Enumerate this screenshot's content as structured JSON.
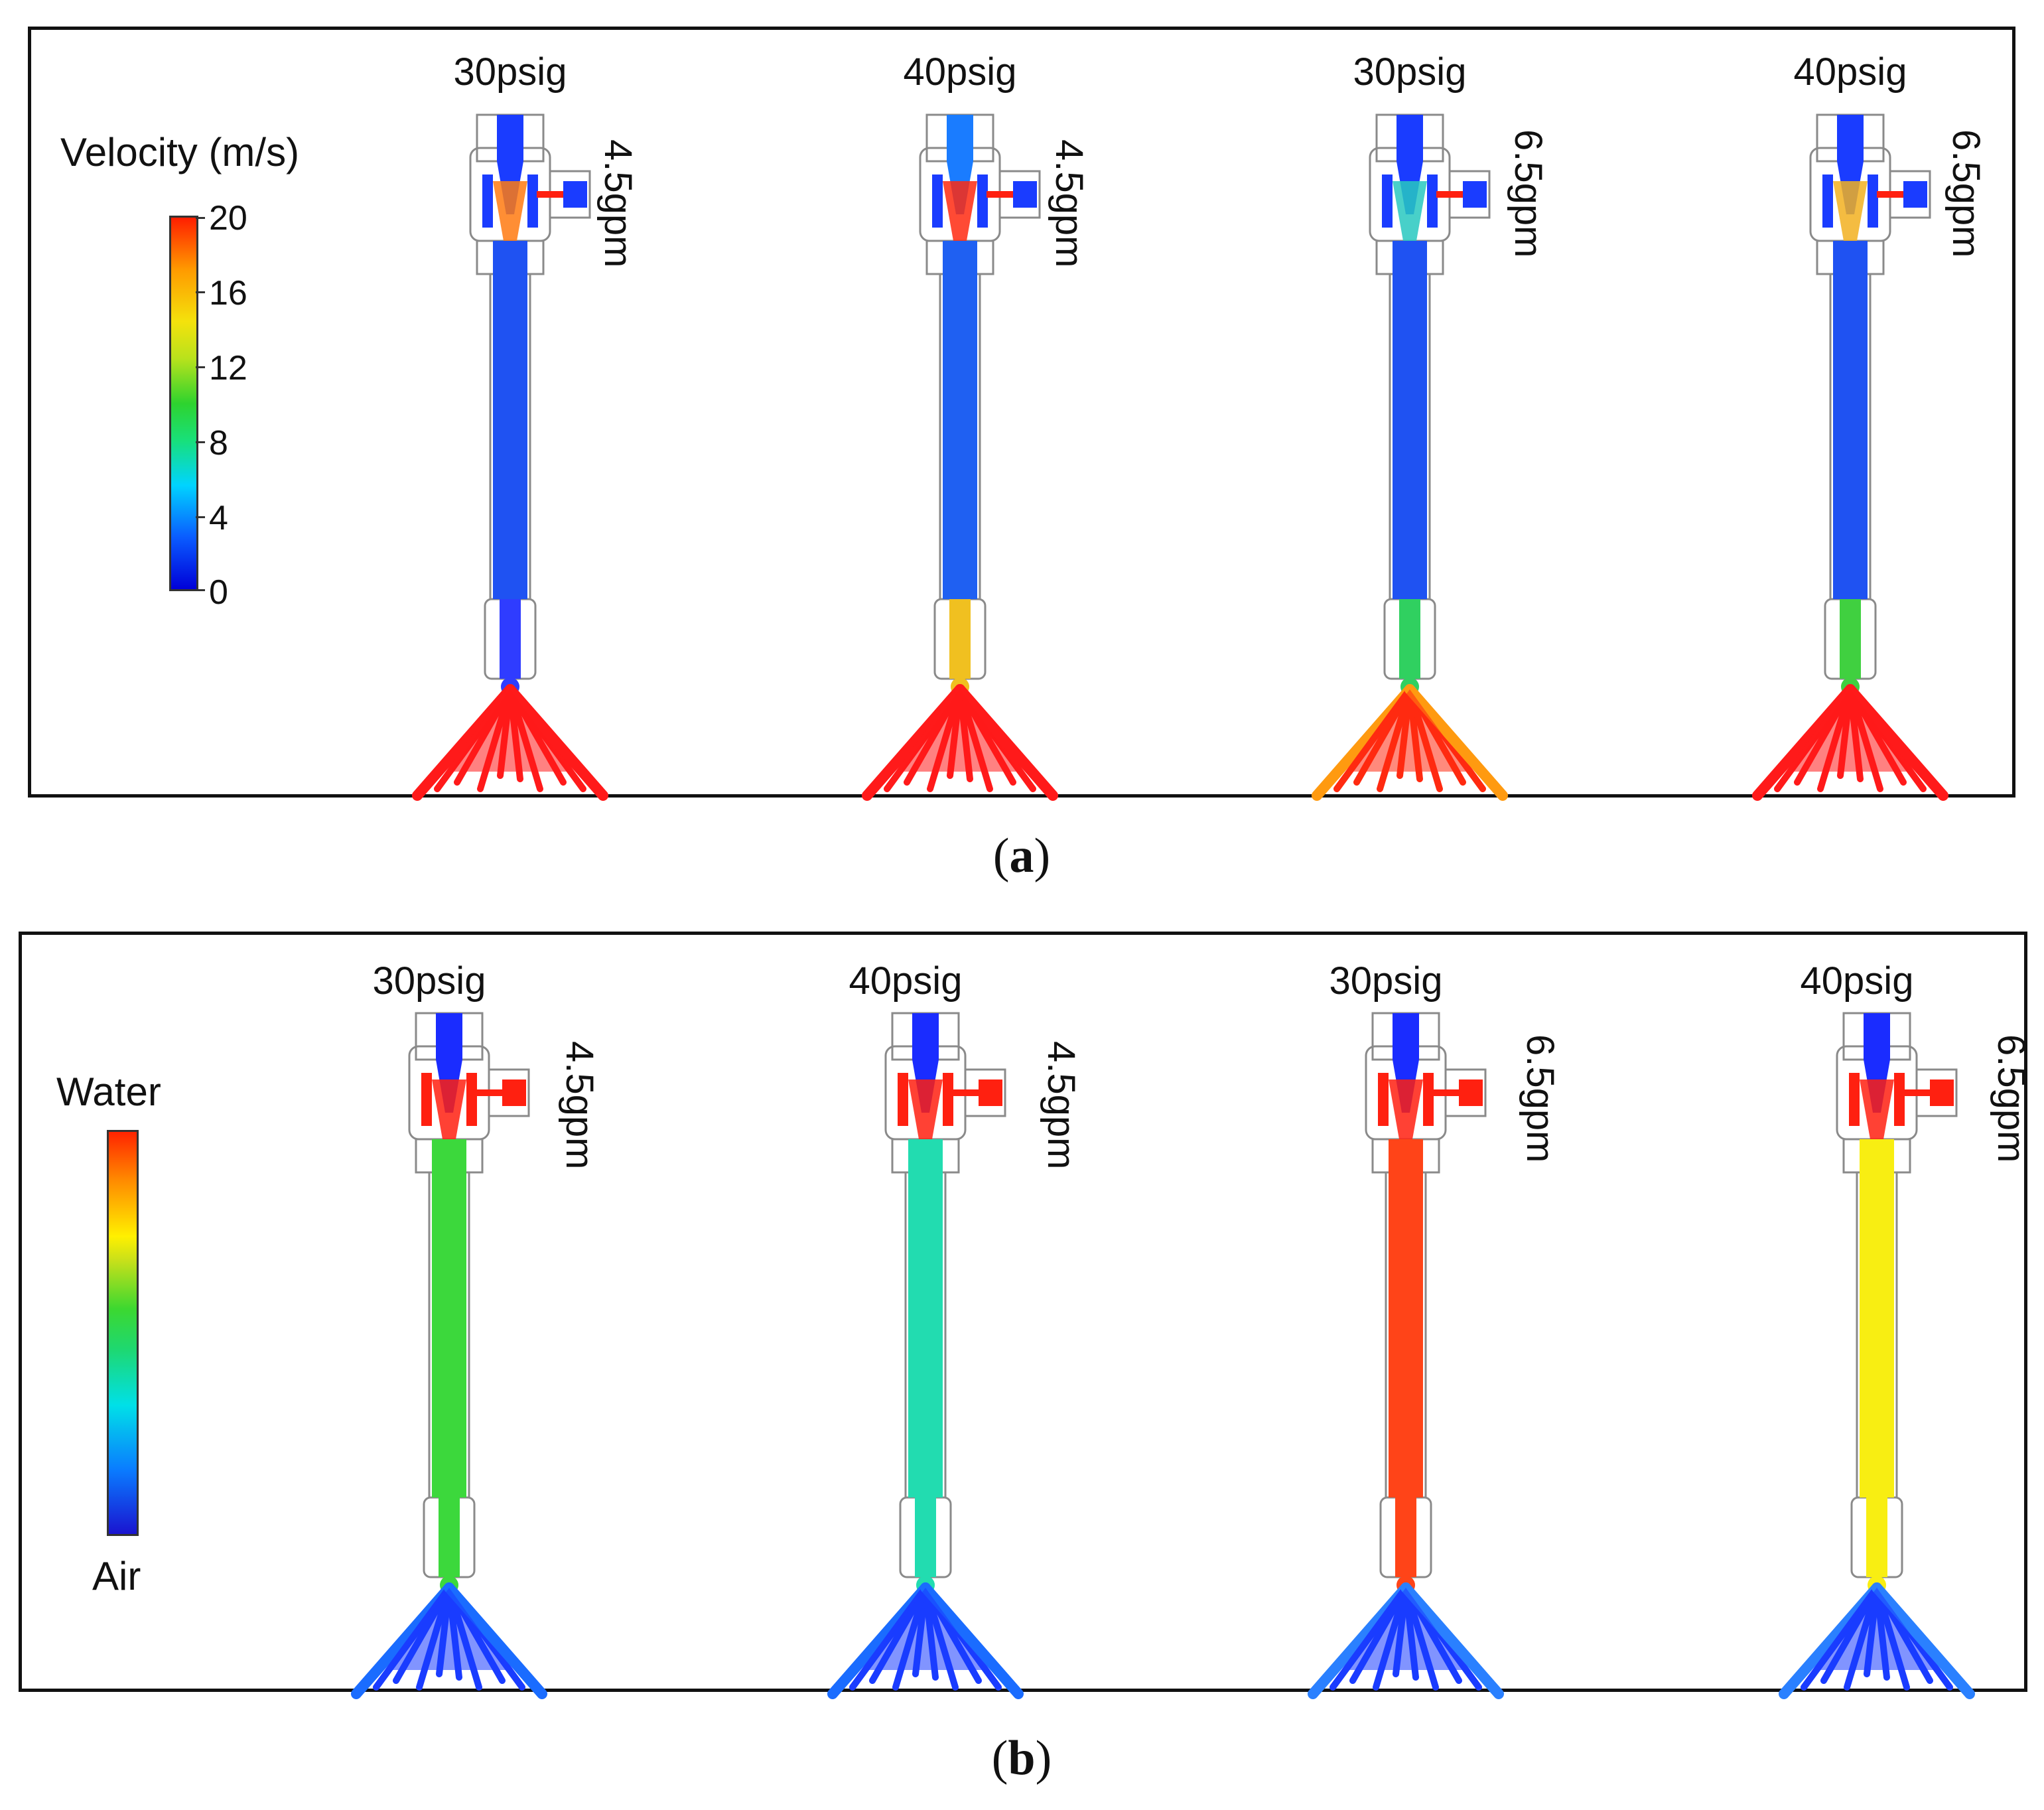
{
  "panels": [
    {
      "id": "a",
      "sublabel_open": "(",
      "sublabel_letter": "a",
      "sublabel_close": ")",
      "legend": {
        "title": "Velocity (m/s)",
        "ticks": [
          "20",
          "16",
          "12",
          "8",
          "4",
          "0"
        ]
      },
      "columns": [
        {
          "pressure": "30psig",
          "flow": "4.5gpm",
          "fields": {
            "inlet": "#1a3cff",
            "side": "#1a3cff",
            "core": "#ff7a10",
            "tube": "#1f52f2",
            "throat": "#2f3cff",
            "spray": "#ff1a1a",
            "spray_edge": "#ff1a1a"
          }
        },
        {
          "pressure": "40psig",
          "flow": "4.5gpm",
          "fields": {
            "inlet": "#1a7cff",
            "side": "#1a3cff",
            "core": "#ff2a10",
            "tube": "#1f60f2",
            "throat": "#f0c020",
            "spray": "#ff1a1a",
            "spray_edge": "#ff1a1a"
          }
        },
        {
          "pressure": "30psig",
          "flow": "6.5gpm",
          "fields": {
            "inlet": "#1a3cff",
            "side": "#1a3cff",
            "core": "#28c8c0",
            "tube": "#1f52f2",
            "throat": "#30d060",
            "spray": "#ff2a10",
            "spray_edge": "#ff9a10"
          }
        },
        {
          "pressure": "40psig",
          "flow": "6.5gpm",
          "fields": {
            "inlet": "#1a3cff",
            "side": "#1a3cff",
            "core": "#f2b020",
            "tube": "#1f52f2",
            "throat": "#40d040",
            "spray": "#ff1a1a",
            "spray_edge": "#ff1a1a"
          }
        }
      ]
    },
    {
      "id": "b",
      "sublabel_open": "(",
      "sublabel_letter": "b",
      "sublabel_close": ")",
      "legend": {
        "top": "Water",
        "bottom": "Air"
      },
      "columns": [
        {
          "pressure": "30psig",
          "flow": "4.5gpm",
          "fields": {
            "inlet": "#1a2cff",
            "side": "#ff2010",
            "core": "#ff2010",
            "tube": "#3cd83c",
            "throat": "#3cd83c",
            "spray": "#1a3cff",
            "spray_edge": "#1a6cff"
          }
        },
        {
          "pressure": "40psig",
          "flow": "4.5gpm",
          "fields": {
            "inlet": "#1a2cff",
            "side": "#ff2010",
            "core": "#ff2010",
            "tube": "#22dcb0",
            "throat": "#22dcb0",
            "spray": "#1a3cff",
            "spray_edge": "#1a6cff"
          }
        },
        {
          "pressure": "30psig",
          "flow": "6.5gpm",
          "fields": {
            "inlet": "#1a2cff",
            "side": "#ff2010",
            "core": "#ff2010",
            "tube": "#ff4418",
            "throat": "#ff4418",
            "spray": "#1a3cff",
            "spray_edge": "#2a80ff"
          }
        },
        {
          "pressure": "40psig",
          "flow": "6.5gpm",
          "fields": {
            "inlet": "#1a2cff",
            "side": "#ff2010",
            "core": "#ff2010",
            "tube": "#f8ee12",
            "throat": "#f8ee12",
            "spray": "#1a3cff",
            "spray_edge": "#2a80ff"
          }
        }
      ]
    }
  ]
}
